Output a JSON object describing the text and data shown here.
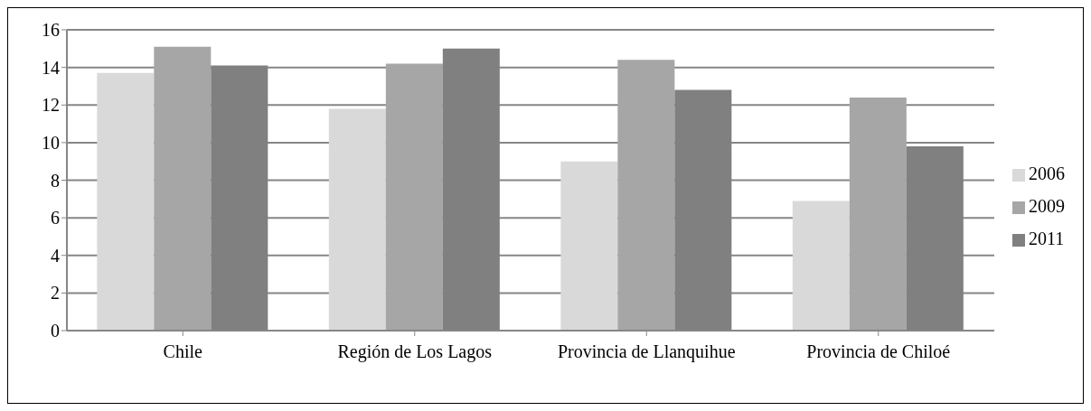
{
  "chart_data": {
    "type": "bar",
    "categories": [
      "Chile",
      "Región de Los Lagos",
      "Provincia de Llanquihue",
      "Provincia de Chiloé"
    ],
    "series": [
      {
        "name": "2006",
        "color": "#d9d9d9",
        "values": [
          13.7,
          11.8,
          9.0,
          6.9
        ]
      },
      {
        "name": "2009",
        "color": "#a6a6a6",
        "values": [
          15.1,
          14.2,
          14.4,
          12.4
        ]
      },
      {
        "name": "2011",
        "color": "#808080",
        "values": [
          14.1,
          15.0,
          12.8,
          9.8
        ]
      }
    ],
    "ylim": [
      0,
      16
    ],
    "yticks": [
      0,
      2,
      4,
      6,
      8,
      10,
      12,
      14,
      16
    ],
    "grid": "y",
    "legend": "right"
  }
}
